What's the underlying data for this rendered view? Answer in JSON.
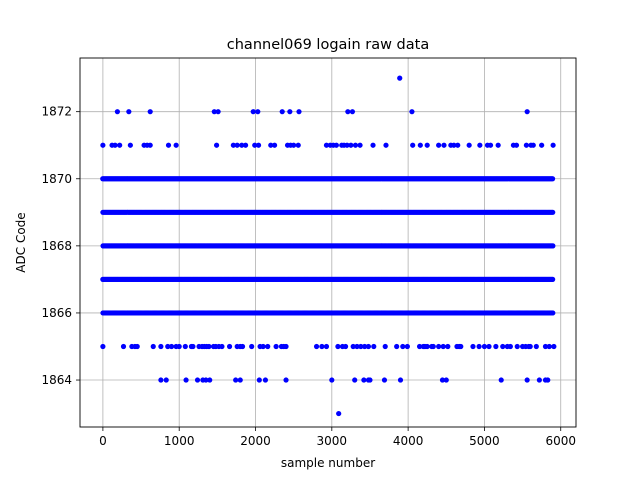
{
  "chart_data": {
    "type": "scatter",
    "title": "channel069 logain raw data",
    "xlabel": "sample number",
    "ylabel": "ADC Code",
    "xlim": [
      -300,
      6200
    ],
    "ylim": [
      1862.6,
      1873.6
    ],
    "xticks": [
      0,
      1000,
      2000,
      3000,
      4000,
      5000,
      6000
    ],
    "yticks": [
      1864,
      1866,
      1868,
      1870,
      1872
    ],
    "grid": true,
    "marker_color": "#0000ff",
    "series": [
      {
        "n_samples": 5900,
        "dense_levels": [
          1866,
          1867,
          1868,
          1869,
          1870
        ],
        "sparse_points": {
          "1865": [
            0,
            270,
            380,
            420,
            450,
            660,
            760,
            850,
            900,
            960,
            1000,
            1080,
            1160,
            1180,
            1260,
            1300,
            1330,
            1360,
            1390,
            1450,
            1480,
            1520,
            1560,
            1660,
            1760,
            1800,
            1830,
            1950,
            2060,
            2100,
            2160,
            2270,
            2340,
            2370,
            2400,
            2800,
            2870,
            2930,
            3080,
            3140,
            3180,
            3280,
            3330,
            3380,
            3430,
            3480,
            3550,
            3700,
            3850,
            3930,
            3990,
            4150,
            4200,
            4220,
            4250,
            4310,
            4330,
            4400,
            4460,
            4520,
            4640,
            4670,
            4690,
            4850,
            4930,
            5000,
            5060,
            5150,
            5240,
            5300,
            5340,
            5430,
            5500,
            5540,
            5580,
            5600,
            5680,
            5800,
            5850,
            5910
          ],
          "1864": [
            760,
            830,
            1090,
            1240,
            1310,
            1350,
            1400,
            1740,
            1800,
            2050,
            2130,
            2400,
            3000,
            3300,
            3420,
            3480,
            3500,
            3690,
            3900,
            4450,
            4500,
            5220,
            5560,
            5720,
            5800,
            5830
          ],
          "1871": [
            0,
            120,
            160,
            220,
            360,
            540,
            580,
            620,
            860,
            960,
            1490,
            1710,
            1760,
            1820,
            1870,
            1990,
            2040,
            2200,
            2250,
            2420,
            2460,
            2500,
            2560,
            2930,
            2980,
            3020,
            3060,
            3130,
            3160,
            3200,
            3250,
            3310,
            3370,
            3540,
            3710,
            4060,
            4160,
            4250,
            4400,
            4470,
            4560,
            4600,
            4650,
            4800,
            4940,
            5040,
            5080,
            5180,
            5380,
            5420,
            5550,
            5610,
            5640,
            5750,
            5900
          ],
          "1872": [
            190,
            340,
            620,
            1460,
            1510,
            1970,
            2030,
            2350,
            2450,
            2570,
            3210,
            3270,
            4050,
            5560
          ],
          "1873": [
            3890
          ],
          "1863": [
            3090
          ]
        }
      }
    ]
  }
}
